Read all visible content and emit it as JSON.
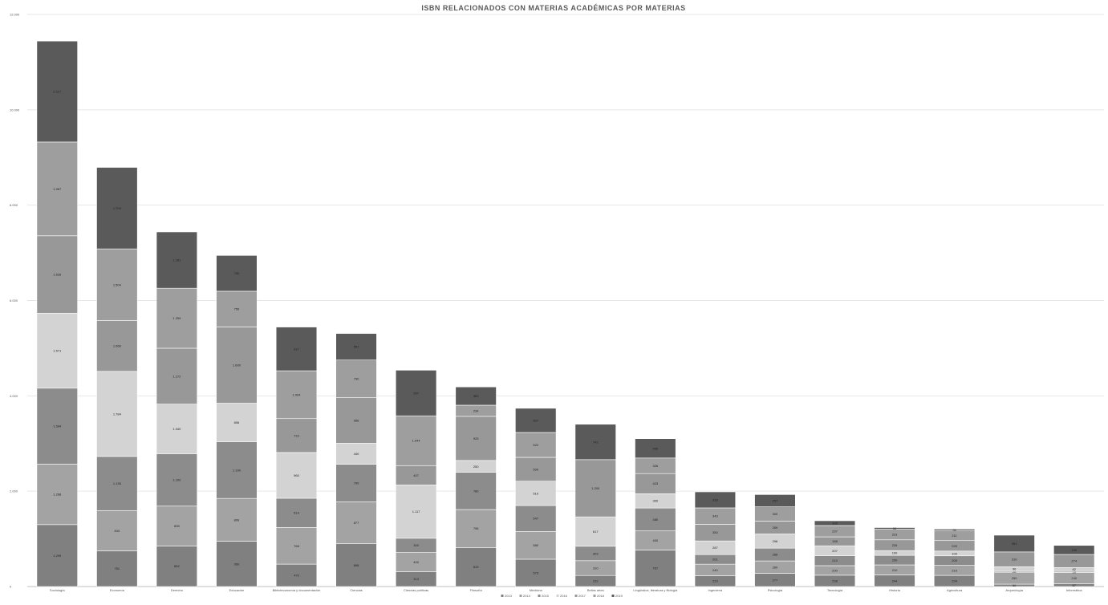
{
  "chart_data": {
    "type": "bar",
    "stacked": true,
    "title": "ISBN RELACIONADOS CON MATERIAS ACADÉMICAS POR MATERIAS",
    "xlabel": "",
    "ylabel": "",
    "ylim": [
      0,
      12000
    ],
    "yticks": [
      0,
      2000,
      4000,
      6000,
      8000,
      10000,
      12000
    ],
    "ytick_labels": [
      "0",
      "2.000",
      "4.000",
      "6.000",
      "8.000",
      "10.000",
      "12.000"
    ],
    "grid": true,
    "legend_position": "bottom",
    "categories": [
      "Sociología",
      "Economía",
      "Derecho",
      "Educación",
      "Biblioteconomía y documentación",
      "Ciencias",
      "Ciencias políticas",
      "Filosofía",
      "Medicina",
      "Bellas artes",
      "Lingüística, literatura y filología",
      "Ingeniería",
      "Psicología",
      "Tecnología",
      "Historia",
      "Agricultura",
      "Arqueología",
      "Informática"
    ],
    "series": [
      {
        "name": "2013",
        "color": "#808080",
        "values": [
          1299,
          751,
          852,
          950,
          470,
          898,
          313,
          819,
          573,
          232,
          767,
          229,
          277,
          238,
          244,
          234,
          50,
          57
        ]
      },
      {
        "name": "2014",
        "color": "#a3a3a3",
        "values": [
          1268,
          843,
          835,
          899,
          768,
          877,
          400,
          796,
          580,
          310,
          400,
          240,
          260,
          200,
          210,
          210,
          250,
          240
        ]
      },
      {
        "name": "2015",
        "color": "#8c8c8c",
        "values": [
          1594,
          1135,
          1100,
          1190,
          614,
          790,
          300,
          780,
          547,
          303,
          480,
          201,
          268,
          210,
          200,
          200,
          20,
          20
        ]
      },
      {
        "name": "2016",
        "color": "#d3d3d3",
        "values": [
          1571,
          1784,
          1040,
          806,
          960,
          440,
          1117,
          250,
          510,
          617,
          300,
          287,
          298,
          207,
          100,
          100,
          96,
          82
        ]
      },
      {
        "name": "2017",
        "color": "#989898",
        "values": [
          1626,
          1066,
          1172,
          1600,
          710,
          956,
          407,
          925,
          500,
          1200,
          423,
          350,
          269,
          188,
          226,
          220,
          310,
          274
        ]
      },
      {
        "name": "2018",
        "color": "#9e9e9e",
        "values": [
          1967,
          1504,
          1259,
          750,
          1004,
          790,
          1044,
          234,
          522,
          0,
          326,
          343,
          300,
          237,
          223,
          211,
          0,
          0
        ]
      },
      {
        "name": "2019",
        "color": "#5a5a5a",
        "values": [
          2117,
          1709,
          1181,
          750,
          917,
          557,
          957,
          383,
          507,
          742,
          406,
          336,
          257,
          100,
          34,
          30,
          351,
          190
        ]
      }
    ],
    "data_labels": [
      [
        "1.299",
        "1.268",
        "1.594",
        "1.571",
        "1.626",
        "1.967",
        "2.117"
      ],
      [
        "751",
        "843",
        "1.135",
        "1.784",
        "1.066",
        "1.504",
        "1.709"
      ],
      [
        "852",
        "835",
        "1.100",
        "1.040",
        "1.172",
        "1.259",
        "1.181"
      ],
      [
        "950",
        "899",
        "1.190",
        "806",
        "1.600",
        "750",
        "750"
      ],
      [
        "470",
        "768",
        "614",
        "960",
        "710",
        "1.004",
        "917"
      ],
      [
        "898",
        "877",
        "790",
        "440",
        "956",
        "790",
        "557"
      ],
      [
        "313",
        "400",
        "300",
        "1.117",
        "407",
        "1.044",
        "957"
      ],
      [
        "819",
        "796",
        "780",
        "250",
        "925",
        "234",
        "383"
      ],
      [
        "573",
        "580",
        "547",
        "510",
        "500",
        "522",
        "507"
      ],
      [
        "232",
        "310",
        "303",
        "617",
        "1.200",
        "",
        "742"
      ],
      [
        "767",
        "400",
        "480",
        "300",
        "423",
        "326",
        "406"
      ],
      [
        "229",
        "240",
        "201",
        "287",
        "350",
        "343",
        "336"
      ],
      [
        "277",
        "260",
        "268",
        "298",
        "269",
        "300",
        "257"
      ],
      [
        "238",
        "200",
        "210",
        "207",
        "188",
        "237",
        "100"
      ],
      [
        "244",
        "210",
        "200",
        "100",
        "226",
        "223",
        "34"
      ],
      [
        "234",
        "210",
        "200",
        "100",
        "220",
        "211",
        "30"
      ],
      [
        "50",
        "250",
        "20",
        "96",
        "310",
        "",
        "351"
      ],
      [
        "57",
        "240",
        "20",
        "82",
        "274",
        "",
        "190"
      ]
    ]
  }
}
